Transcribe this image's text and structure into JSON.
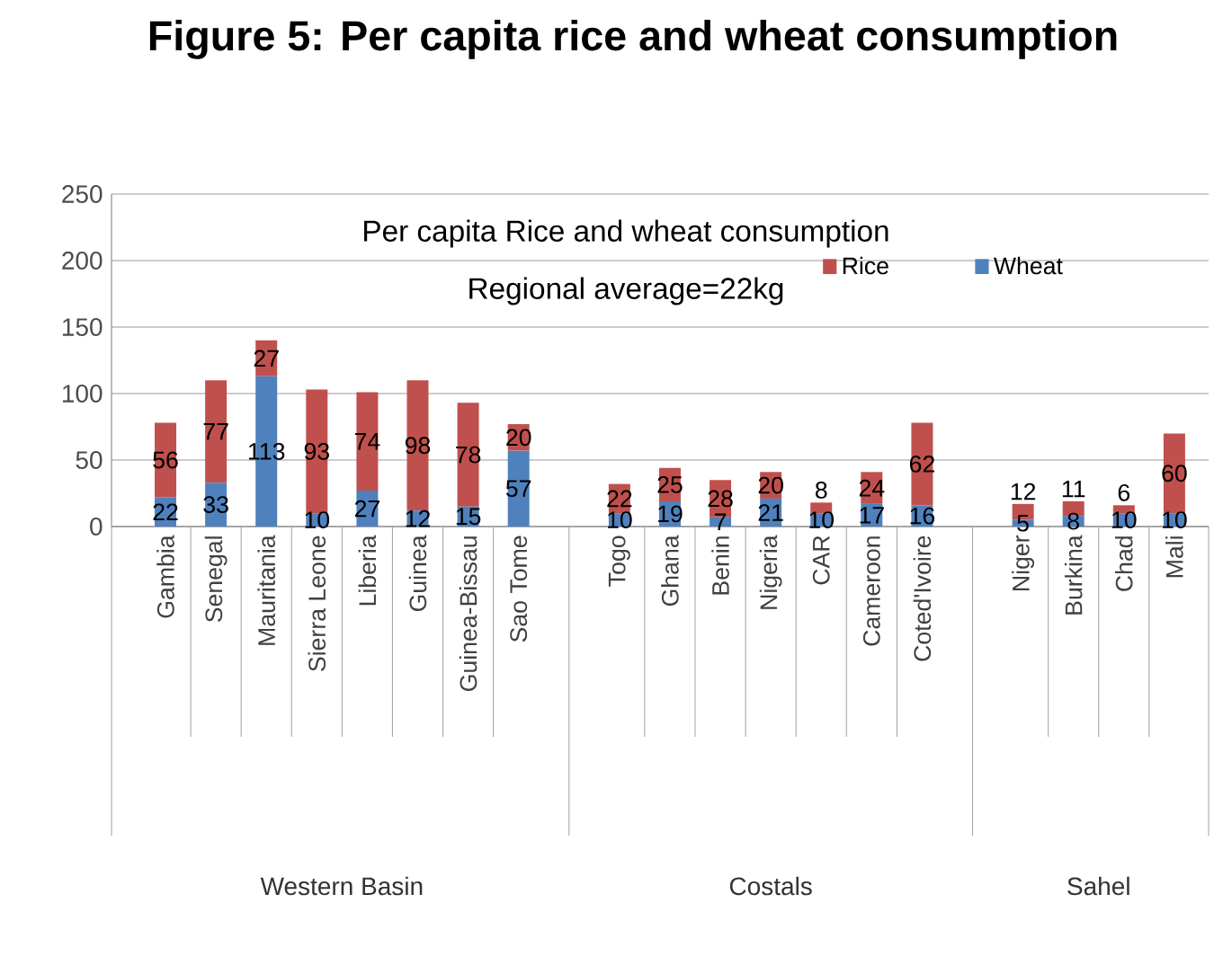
{
  "chart_data": {
    "type": "bar",
    "stacked": true,
    "title": "Figure 5: Per capita rice and wheat consumption",
    "subtitle": "Per capita Rice and wheat consumption",
    "annotations": [
      "Regional average=22kg",
      "Western Basin",
      "Costals",
      "Sahel"
    ],
    "categories": [
      "Gambia",
      "Senegal",
      "Mauritania",
      "Sierra Leone",
      "Liberia",
      "Guinea",
      "Guinea-Bissau",
      "Sao Tome",
      null,
      "Togo",
      "Ghana",
      "Benin",
      "Nigeria",
      "CAR",
      "Cameroon",
      "Coted'Ivoire",
      null,
      "Niger",
      "Burkina",
      "Chad",
      "Mali"
    ],
    "series": [
      {
        "name": "Wheat",
        "color": "#4f81bd",
        "values": [
          22,
          33,
          113,
          10,
          27,
          12,
          15,
          57,
          null,
          10,
          19,
          7,
          21,
          10,
          17,
          16,
          null,
          5,
          8,
          10,
          10
        ]
      },
      {
        "name": "Rice",
        "color": "#c0504d",
        "values": [
          56,
          77,
          27,
          93,
          74,
          98,
          78,
          20,
          null,
          22,
          25,
          28,
          20,
          8,
          24,
          62,
          null,
          12,
          11,
          6,
          60
        ]
      }
    ],
    "ylim": [
      0,
      250
    ],
    "yticks": [
      0,
      50,
      100,
      150,
      200,
      250
    ],
    "grid": "y",
    "legend": "top right",
    "data_labels": true
  }
}
